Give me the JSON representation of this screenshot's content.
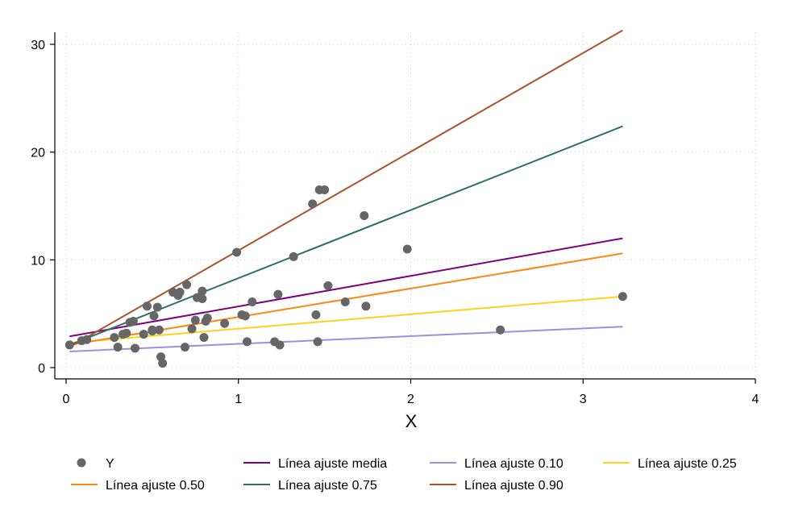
{
  "chart_data": {
    "type": "scatter",
    "title": "",
    "xlabel": "X",
    "ylabel": "",
    "xlim": [
      0,
      4
    ],
    "ylim": [
      0,
      30
    ],
    "xticks": [
      "0",
      "1",
      "2",
      "3",
      "4"
    ],
    "yticks": [
      "0",
      "10",
      "20",
      "30"
    ],
    "grid": "dotted",
    "legend_position": "bottom",
    "scatter": {
      "name": "Y",
      "color": "#666666",
      "points": [
        [
          0.02,
          2.1
        ],
        [
          0.09,
          2.5
        ],
        [
          0.12,
          2.6
        ],
        [
          0.28,
          2.8
        ],
        [
          0.3,
          1.9
        ],
        [
          0.33,
          3.1
        ],
        [
          0.35,
          3.2
        ],
        [
          0.37,
          4.2
        ],
        [
          0.39,
          4.3
        ],
        [
          0.4,
          1.8
        ],
        [
          0.45,
          3.1
        ],
        [
          0.47,
          5.7
        ],
        [
          0.5,
          3.5
        ],
        [
          0.5,
          3.4
        ],
        [
          0.51,
          4.8
        ],
        [
          0.53,
          5.6
        ],
        [
          0.54,
          3.5
        ],
        [
          0.55,
          1.0
        ],
        [
          0.56,
          0.4
        ],
        [
          0.62,
          7.0
        ],
        [
          0.65,
          6.7
        ],
        [
          0.66,
          7.0
        ],
        [
          0.69,
          1.9
        ],
        [
          0.7,
          7.7
        ],
        [
          0.73,
          3.6
        ],
        [
          0.75,
          4.4
        ],
        [
          0.76,
          6.5
        ],
        [
          0.79,
          6.4
        ],
        [
          0.79,
          7.1
        ],
        [
          0.8,
          2.8
        ],
        [
          0.81,
          4.3
        ],
        [
          0.82,
          4.6
        ],
        [
          0.92,
          4.1
        ],
        [
          0.99,
          10.7
        ],
        [
          1.02,
          4.9
        ],
        [
          1.04,
          4.8
        ],
        [
          1.05,
          2.4
        ],
        [
          1.08,
          6.1
        ],
        [
          1.21,
          2.4
        ],
        [
          1.23,
          6.8
        ],
        [
          1.24,
          2.1
        ],
        [
          1.32,
          10.3
        ],
        [
          1.43,
          15.2
        ],
        [
          1.45,
          4.9
        ],
        [
          1.46,
          2.4
        ],
        [
          1.47,
          16.5
        ],
        [
          1.5,
          16.5
        ],
        [
          1.52,
          7.6
        ],
        [
          1.62,
          6.1
        ],
        [
          1.73,
          14.1
        ],
        [
          1.74,
          5.7
        ],
        [
          1.98,
          11.0
        ],
        [
          2.52,
          3.5
        ],
        [
          3.23,
          6.6
        ]
      ]
    },
    "series": [
      {
        "name": "Línea ajuste media",
        "color": "#800080",
        "x": [
          0.02,
          3.23
        ],
        "y": [
          2.9,
          12.0
        ]
      },
      {
        "name": "Línea ajuste 0.10",
        "color": "#9b8fe0",
        "x": [
          0.02,
          3.23
        ],
        "y": [
          1.5,
          3.8
        ]
      },
      {
        "name": "Línea ajuste 0.25",
        "color": "#ffd21c",
        "x": [
          0.02,
          3.23
        ],
        "y": [
          2.3,
          6.6
        ]
      },
      {
        "name": "Línea ajuste 0.50",
        "color": "#ff8512",
        "x": [
          0.02,
          3.23
        ],
        "y": [
          2.1,
          10.6
        ]
      },
      {
        "name": "Línea ajuste 0.75",
        "color": "#2f6f68",
        "x": [
          0.02,
          3.23
        ],
        "y": [
          2.1,
          22.4
        ]
      },
      {
        "name": "Línea ajuste 0.90",
        "color": "#a9532e",
        "x": [
          0.02,
          3.23
        ],
        "y": [
          1.9,
          31.3
        ]
      }
    ],
    "legend": [
      {
        "label": "Y",
        "kind": "marker",
        "color": "#666666"
      },
      {
        "label": "Línea ajuste media",
        "kind": "line",
        "color": "#800080"
      },
      {
        "label": "Línea ajuste 0.10",
        "kind": "line",
        "color": "#9b8fe0"
      },
      {
        "label": "Línea ajuste 0.25",
        "kind": "line",
        "color": "#ffd21c"
      },
      {
        "label": "Línea ajuste 0.50",
        "kind": "line",
        "color": "#ff8512"
      },
      {
        "label": "Línea ajuste 0.75",
        "kind": "line",
        "color": "#2f6f68"
      },
      {
        "label": "Línea ajuste 0.90",
        "kind": "line",
        "color": "#a9532e"
      }
    ]
  }
}
